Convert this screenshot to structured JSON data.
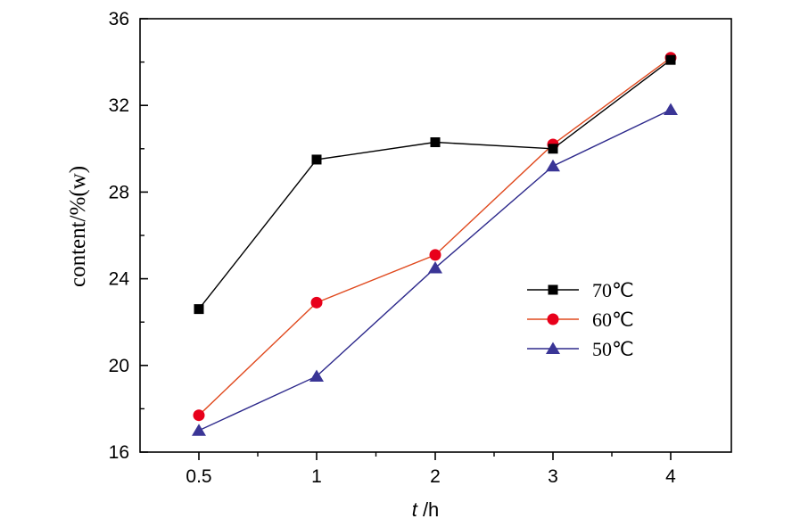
{
  "chart_data": {
    "type": "line",
    "categories": [
      "0.5",
      "1",
      "2",
      "3",
      "4"
    ],
    "series": [
      {
        "name": "70℃",
        "values": [
          22.6,
          29.5,
          30.3,
          30.0,
          34.1
        ],
        "color": "#000000",
        "marker": "square"
      },
      {
        "name": "60℃",
        "values": [
          17.7,
          22.9,
          25.1,
          30.2,
          34.2
        ],
        "color": "#e04a1f",
        "marker": "circle"
      },
      {
        "name": "50℃",
        "values": [
          17.0,
          19.5,
          24.5,
          29.2,
          31.8
        ],
        "color": "#2e2a8c",
        "marker": "triangle"
      }
    ],
    "marker_fill": {
      "70℃": "#000000",
      "60℃": "#e8001b",
      "50℃": "#3a3596"
    },
    "xlabel_italic": "t",
    "xlabel_unit": " /h",
    "ylabel": "content/%(w)",
    "ylim": [
      16,
      36
    ],
    "yticks": [
      "16",
      "20",
      "24",
      "28",
      "32",
      "36"
    ],
    "legend_position": "center-right",
    "grid": false
  }
}
